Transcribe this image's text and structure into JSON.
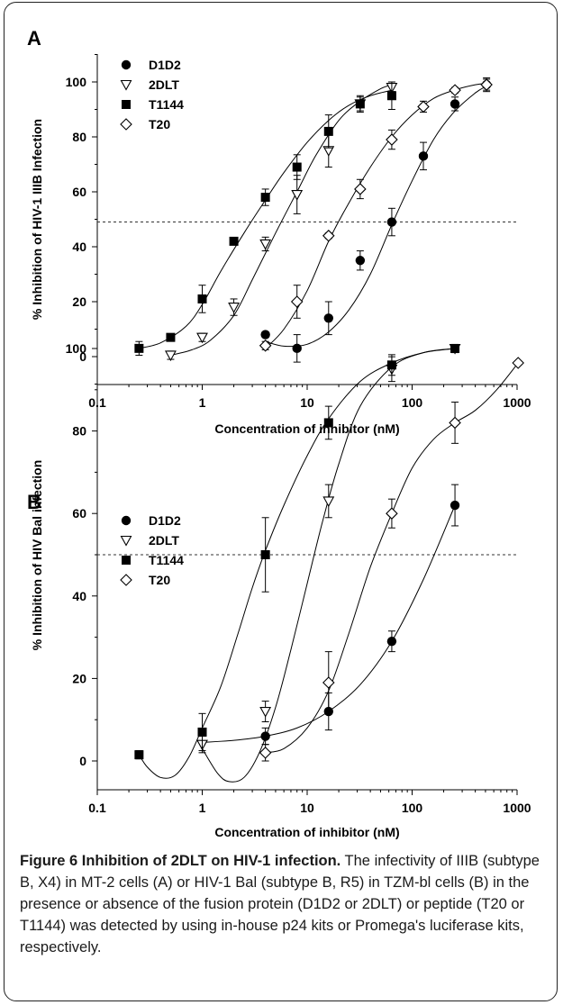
{
  "chart_data": [
    {
      "panel": "A",
      "type": "scatter",
      "ylabel": "% Inhibition of HIV-1 IIIB Infection",
      "xlabel": "Concentration of inhibitor (nM)",
      "xscale": "log",
      "xlim": [
        0.1,
        1000
      ],
      "ylim": [
        -10,
        110
      ],
      "xticks": [
        "0.1",
        "1",
        "10",
        "100",
        "1000"
      ],
      "yticks": [
        "0",
        "20",
        "40",
        "60",
        "80",
        "100"
      ],
      "reference_line": 49,
      "legend": "top-left",
      "grid": false,
      "series": [
        {
          "name": "D1D2",
          "marker": "filled-circle",
          "x": [
            4,
            8,
            16,
            32,
            64,
            128,
            256,
            512
          ],
          "y": [
            8,
            3,
            14,
            35,
            49,
            73,
            92,
            99
          ],
          "err": [
            1,
            5,
            6,
            3.5,
            5,
            5,
            2.5,
            2
          ],
          "fit": [
            [
              4,
              5.5
            ],
            [
              6,
              3.8
            ],
            [
              10,
              4.5
            ],
            [
              16,
              9
            ],
            [
              25,
              17
            ],
            [
              40,
              30
            ],
            [
              64,
              48
            ],
            [
              100,
              64
            ],
            [
              160,
              79
            ],
            [
              250,
              89
            ],
            [
              400,
              96
            ],
            [
              512,
              98.5
            ]
          ]
        },
        {
          "name": "2DLT",
          "marker": "open-triangle",
          "x": [
            0.5,
            1,
            2,
            4,
            8,
            16,
            32,
            64
          ],
          "y": [
            0.5,
            7,
            18,
            41,
            59,
            75,
            92,
            98
          ],
          "err": [
            1.5,
            1.5,
            3,
            2.5,
            7,
            6,
            3,
            1.5
          ],
          "fit": [
            [
              0.5,
              0.5
            ],
            [
              0.8,
              2.5
            ],
            [
              1.2,
              6
            ],
            [
              2,
              15
            ],
            [
              3,
              28
            ],
            [
              5,
              45
            ],
            [
              8,
              60
            ],
            [
              12,
              73
            ],
            [
              20,
              86
            ],
            [
              32,
              93
            ],
            [
              50,
              97.5
            ],
            [
              64,
              99
            ]
          ]
        },
        {
          "name": "T1144",
          "marker": "filled-square",
          "x": [
            0.25,
            0.5,
            1,
            2,
            4,
            8,
            16,
            32,
            64
          ],
          "y": [
            3,
            7,
            21,
            42,
            58,
            69,
            82,
            92,
            95
          ],
          "err": [
            2.5,
            1,
            5,
            1,
            3,
            4.5,
            6,
            2.5,
            5
          ],
          "fit": [
            [
              0.25,
              3
            ],
            [
              0.4,
              5
            ],
            [
              0.7,
              11
            ],
            [
              1,
              19
            ],
            [
              1.5,
              31
            ],
            [
              2.5,
              45
            ],
            [
              4,
              57
            ],
            [
              6,
              67
            ],
            [
              10,
              78
            ],
            [
              16,
              86
            ],
            [
              25,
              91.5
            ],
            [
              40,
              95
            ],
            [
              64,
              97
            ]
          ]
        },
        {
          "name": "T20",
          "marker": "open-diamond",
          "x": [
            4,
            8,
            16,
            32,
            64,
            128,
            256,
            512
          ],
          "y": [
            4,
            20,
            44,
            61,
            79,
            91,
            97,
            99
          ],
          "err": [
            1.5,
            6,
            1,
            3.5,
            3.5,
            2,
            1,
            2.5
          ],
          "fit": [
            [
              4,
              3
            ],
            [
              6,
              10
            ],
            [
              10,
              24
            ],
            [
              16,
              42
            ],
            [
              25,
              56
            ],
            [
              40,
              69
            ],
            [
              64,
              80
            ],
            [
              100,
              88
            ],
            [
              160,
              94
            ],
            [
              250,
              97
            ],
            [
              400,
              99
            ],
            [
              512,
              99.5
            ]
          ]
        }
      ]
    },
    {
      "panel": "B",
      "type": "scatter",
      "ylabel": "% Inhibition of HIV Bal infection",
      "xlabel": "Concentration of inhibitor (nM)",
      "xscale": "log",
      "xlim": [
        0.1,
        1000
      ],
      "ylim": [
        -10,
        110
      ],
      "xticks": [
        "0.1",
        "1",
        "10",
        "100",
        "1000"
      ],
      "yticks": [
        "0",
        "20",
        "40",
        "60",
        "80",
        "100"
      ],
      "reference_line": 50,
      "legend": "top-left",
      "grid": false,
      "series": [
        {
          "name": "D1D2",
          "marker": "filled-circle",
          "x": [
            4,
            16,
            64,
            256
          ],
          "y": [
            6,
            12,
            29,
            62
          ],
          "err": [
            2,
            4.5,
            2.5,
            5
          ],
          "fit": [
            [
              1,
              4.5
            ],
            [
              2,
              5
            ],
            [
              4,
              6
            ],
            [
              8,
              8
            ],
            [
              16,
              12
            ],
            [
              32,
              18.5
            ],
            [
              64,
              29
            ],
            [
              128,
              44
            ],
            [
              256,
              62
            ]
          ]
        },
        {
          "name": "2DLT",
          "marker": "open-triangle",
          "x": [
            1,
            4,
            16,
            64,
            256
          ],
          "y": [
            4,
            12,
            63,
            95,
            100
          ],
          "err": [
            2,
            2.5,
            4,
            3,
            1
          ],
          "fit": [
            [
              1,
              3
            ],
            [
              1.4,
              -3
            ],
            [
              1.8,
              -5
            ],
            [
              2.5,
              -4
            ],
            [
              3.5,
              2
            ],
            [
              5,
              13
            ],
            [
              7,
              27
            ],
            [
              10,
              43
            ],
            [
              14,
              58
            ],
            [
              20,
              72
            ],
            [
              32,
              86
            ],
            [
              64,
              95.5
            ],
            [
              128,
              99
            ],
            [
              256,
              100
            ]
          ]
        },
        {
          "name": "T1144",
          "marker": "filled-square",
          "x": [
            0.25,
            1,
            4,
            16,
            64,
            256
          ],
          "y": [
            1.5,
            7,
            50,
            82,
            96,
            100
          ],
          "err": [
            1,
            4.5,
            9,
            4,
            2.5,
            0.5
          ],
          "fit": [
            [
              0.25,
              1.5
            ],
            [
              0.3,
              -1.5
            ],
            [
              0.4,
              -4
            ],
            [
              0.55,
              -3.5
            ],
            [
              0.75,
              1
            ],
            [
              1,
              8
            ],
            [
              1.5,
              18
            ],
            [
              2.2,
              31
            ],
            [
              3,
              42
            ],
            [
              4,
              51
            ],
            [
              6,
              62
            ],
            [
              10,
              74
            ],
            [
              16,
              83
            ],
            [
              32,
              92
            ],
            [
              64,
              96.5
            ],
            [
              128,
              99
            ],
            [
              256,
              100
            ]
          ]
        },
        {
          "name": "T20",
          "marker": "open-diamond",
          "x": [
            4,
            16,
            64,
            256,
            1024
          ],
          "y": [
            2,
            19,
            60,
            82,
            96.5
          ],
          "err": [
            2,
            7.5,
            3.5,
            5,
            0.5
          ],
          "fit": [
            [
              4,
              2
            ],
            [
              6,
              3
            ],
            [
              10,
              8
            ],
            [
              16,
              17
            ],
            [
              25,
              31
            ],
            [
              40,
              47
            ],
            [
              64,
              60
            ],
            [
              100,
              71
            ],
            [
              160,
              78
            ],
            [
              256,
              82
            ],
            [
              400,
              85
            ],
            [
              640,
              90
            ],
            [
              1024,
              96.5
            ]
          ]
        }
      ]
    }
  ],
  "caption": {
    "title": "Figure 6 Inhibition of 2DLT on HIV-1 infection.",
    "body": " The infectivity of IIIB (subtype B, X4) in MT-2 cells (A) or HIV-1 Bal (subtype B, R5) in TZM-bl cells (B) in the presence or absence of the fusion protein (D1D2 or 2DLT) or peptide (T20 or T1144) was detected by using in-house p24 kits or Promega's luciferase kits, respectively."
  }
}
